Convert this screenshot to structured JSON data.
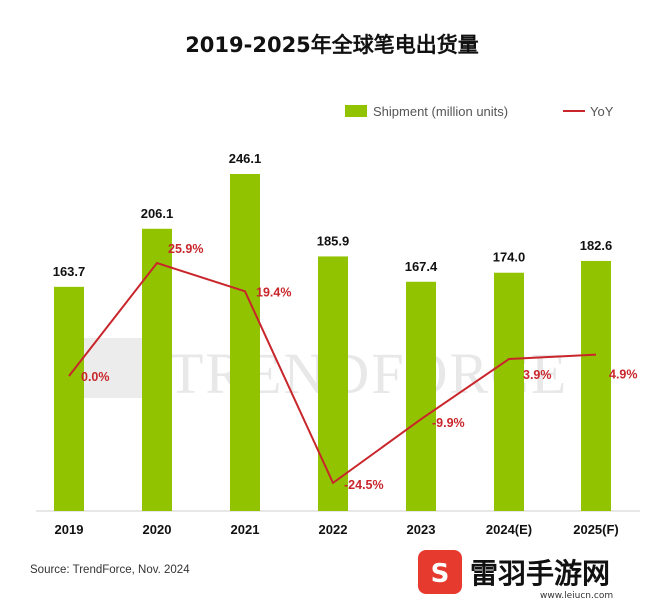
{
  "chart_data": {
    "type": "bar",
    "title": "2019-2025年全球笔电出货量",
    "categories": [
      "2019",
      "2020",
      "2021",
      "2022",
      "2023",
      "2024(E)",
      "2025(F)"
    ],
    "series": [
      {
        "name": "Shipment (million units)",
        "kind": "bar",
        "color": "#92c300",
        "values": [
          163.7,
          206.1,
          246.1,
          185.9,
          167.4,
          174.0,
          182.6
        ],
        "labels": [
          "163.7",
          "206.1",
          "246.1",
          "185.9",
          "167.4",
          "174.0",
          "182.6"
        ]
      },
      {
        "name": "YoY",
        "kind": "line",
        "color": "#c9262c",
        "values": [
          0.0,
          25.9,
          19.4,
          -24.5,
          -9.9,
          3.9,
          4.9
        ],
        "labels": [
          "0.0%",
          "25.9%",
          "19.4%",
          "-24.5%",
          "-9.9%",
          "3.9%",
          "4.9%"
        ]
      }
    ],
    "bar_axis_range": [
      0,
      260
    ],
    "line_axis_range": [
      -30,
      30
    ],
    "grid": false,
    "legend_position": "top-right"
  },
  "source": "Source: TrendForce, Nov. 2024",
  "watermark": "TRENDFORCE",
  "site_badge": {
    "name": "雷羽手游网",
    "url": "www.leiucn.com"
  }
}
